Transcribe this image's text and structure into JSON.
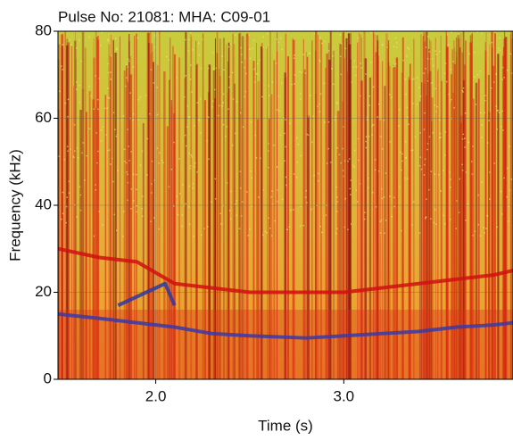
{
  "chart_data": {
    "type": "spectrogram",
    "title": "Pulse No: 21081: MHA: C09-01",
    "xlabel": "Time (s)",
    "ylabel": "Frequency (kHz)",
    "xlim": [
      1.48,
      3.9
    ],
    "ylim": [
      0,
      80
    ],
    "xticks": [
      {
        "value": 2,
        "label": "2.0"
      },
      {
        "value": 3,
        "label": "3.0"
      }
    ],
    "yticks": [
      0,
      20,
      40,
      60,
      80
    ],
    "grid": true,
    "series": [
      {
        "color": "#3a3aa8",
        "x": [
          1.48,
          1.7,
          1.9,
          2.1,
          2.3,
          2.5,
          2.8,
          3.0,
          3.2,
          3.4,
          3.6,
          3.8,
          3.9
        ],
        "values": [
          15,
          14,
          13,
          12,
          10.5,
          10,
          9.5,
          10,
          10.5,
          11,
          12,
          12.5,
          13
        ]
      },
      {
        "color": "#d01010",
        "x": [
          1.48,
          1.7,
          1.9,
          2.1,
          2.3,
          2.5,
          2.8,
          3.0,
          3.2,
          3.4,
          3.6,
          3.8,
          3.9
        ],
        "values": [
          30,
          28,
          27,
          22,
          21,
          20,
          20,
          20,
          21,
          22,
          23,
          24,
          25
        ]
      },
      {
        "color": "#2e3aa0",
        "x": [
          1.8,
          1.9,
          2.0,
          2.05,
          2.1
        ],
        "values": [
          17,
          19,
          21,
          22,
          17
        ]
      }
    ]
  }
}
